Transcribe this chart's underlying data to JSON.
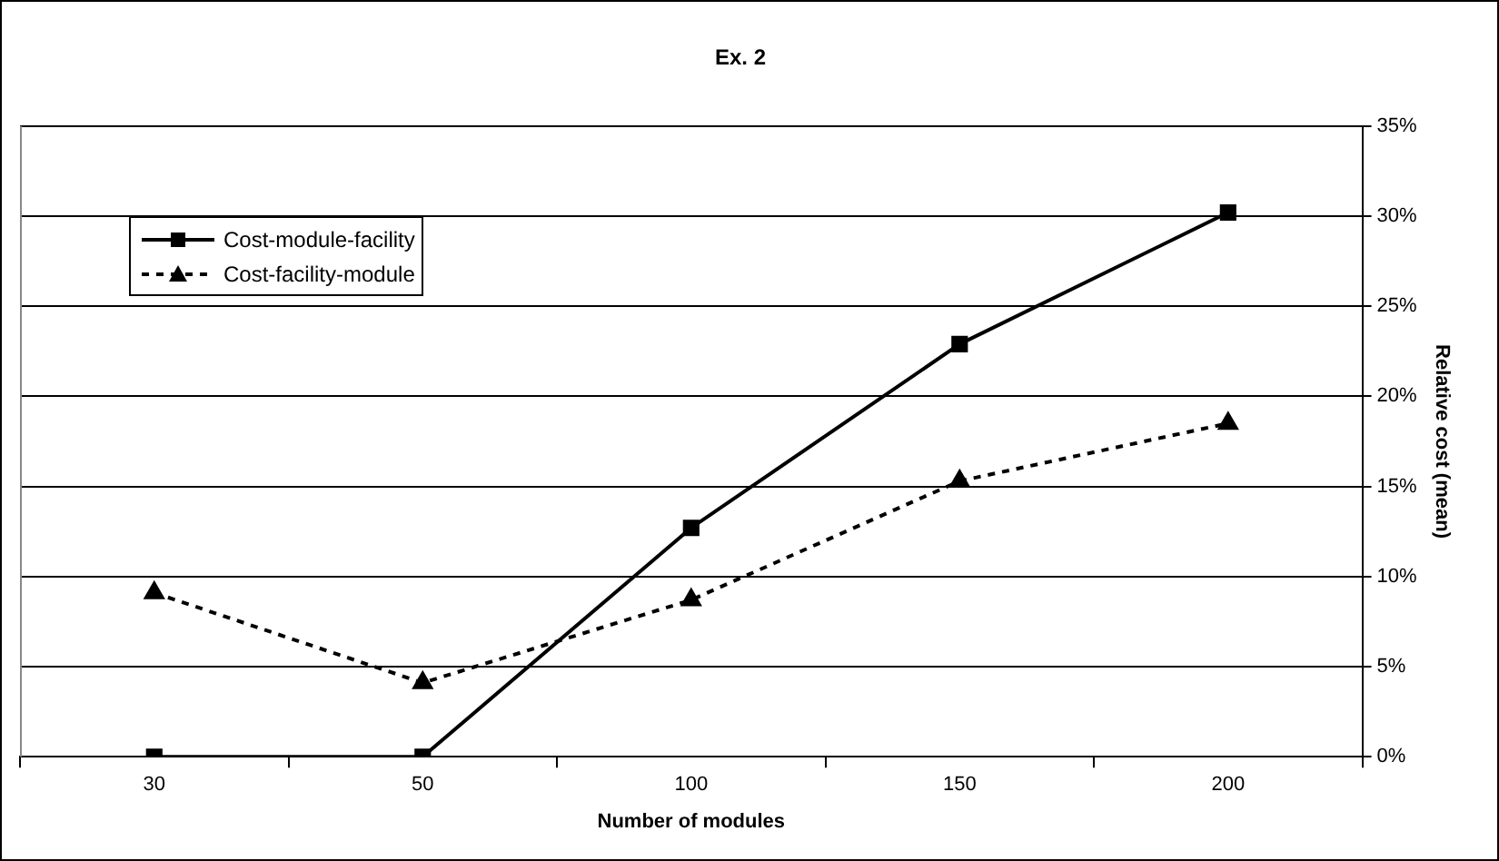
{
  "chart_data": {
    "type": "line",
    "title": "Ex. 2",
    "xlabel": "Number of modules",
    "ylabel": "Relative cost (mean)",
    "categories": [
      "30",
      "50",
      "100",
      "150",
      "200"
    ],
    "series": [
      {
        "name": "Cost-module-facility",
        "color": "#000000",
        "marker": "square",
        "line_style": "solid",
        "values": [
          0,
          0,
          12.7,
          22.9,
          30.2
        ]
      },
      {
        "name": "Cost-facility-module",
        "color": "#000000",
        "marker": "triangle",
        "line_style": "dashed",
        "values": [
          9.1,
          4.1,
          8.7,
          15.3,
          18.5
        ]
      }
    ],
    "ylim": [
      0,
      35
    ],
    "yticks": [
      {
        "value": 0,
        "label": "0%"
      },
      {
        "value": 5,
        "label": "5%"
      },
      {
        "value": 10,
        "label": "10%"
      },
      {
        "value": 15,
        "label": "15%"
      },
      {
        "value": 20,
        "label": "20%"
      },
      {
        "value": 25,
        "label": "25%"
      },
      {
        "value": 30,
        "label": "30%"
      },
      {
        "value": 35,
        "label": "35%"
      }
    ],
    "grid": "y",
    "legend": "top left"
  }
}
